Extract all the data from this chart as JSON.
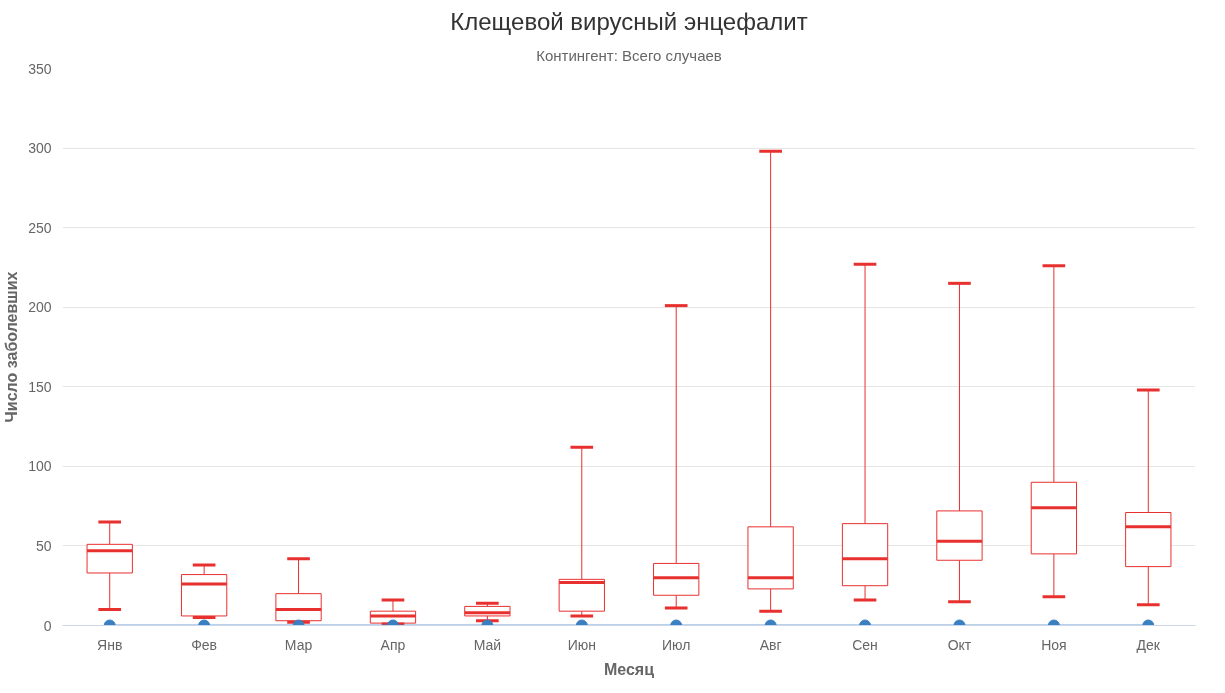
{
  "chart_data": {
    "type": "box",
    "title": "Клещевой вирусный энцефалит",
    "subtitle": "Контингент: Всего случаев",
    "xlabel": "Месяц",
    "ylabel": "Число заболевших",
    "categories": [
      "Янв",
      "Фев",
      "Мар",
      "Апр",
      "Май",
      "Июн",
      "Июл",
      "Авг",
      "Сен",
      "Окт",
      "Ноя",
      "Дек"
    ],
    "ylim": [
      0,
      350
    ],
    "yticks": [
      0,
      50,
      100,
      150,
      200,
      250,
      300,
      350
    ],
    "grid": "y",
    "series": [
      {
        "color": "#e8302f",
        "boxes": [
          {
            "low": 10,
            "q1": 33,
            "median": 47,
            "q3": 51,
            "high": 65
          },
          {
            "low": 5,
            "q1": 6,
            "median": 26,
            "q3": 32,
            "high": 38
          },
          {
            "low": 2,
            "q1": 3,
            "median": 10,
            "q3": 20,
            "high": 42
          },
          {
            "low": 1,
            "q1": 1.5,
            "median": 6,
            "q3": 9,
            "high": 16
          },
          {
            "low": 3,
            "q1": 6,
            "median": 8,
            "q3": 12,
            "high": 14
          },
          {
            "low": 6,
            "q1": 9,
            "median": 27,
            "q3": 29,
            "high": 112
          },
          {
            "low": 11,
            "q1": 19,
            "median": 30,
            "q3": 39,
            "high": 201
          },
          {
            "low": 9,
            "q1": 23,
            "median": 30,
            "q3": 62,
            "high": 298
          },
          {
            "low": 16,
            "q1": 25,
            "median": 42,
            "q3": 64,
            "high": 227
          },
          {
            "low": 15,
            "q1": 41,
            "median": 53,
            "q3": 72,
            "high": 215
          },
          {
            "low": 18,
            "q1": 45,
            "median": 74,
            "q3": 90,
            "high": 226
          },
          {
            "low": 13,
            "q1": 37,
            "median": 62,
            "q3": 71,
            "high": 148
          }
        ]
      },
      {
        "type": "line",
        "color": "#3a7fc0",
        "marker": "circle",
        "values": [
          0,
          0,
          0,
          0,
          0,
          0,
          0,
          0,
          0,
          0,
          0,
          0
        ]
      }
    ]
  }
}
